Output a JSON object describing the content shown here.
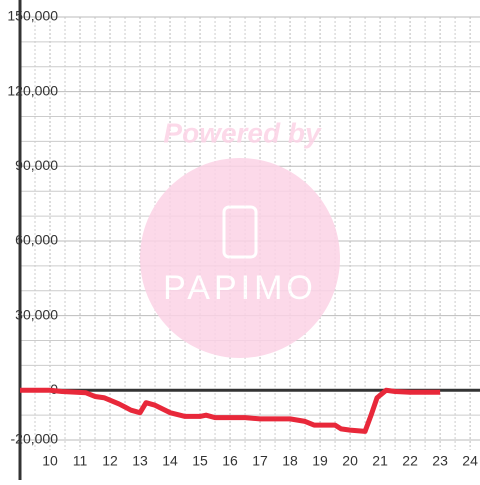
{
  "chart_data": {
    "type": "line",
    "watermark": {
      "text": "Powered by",
      "logo": "PAPIMO"
    },
    "x": [
      9,
      10,
      10.4,
      11.2,
      11.5,
      11.8,
      12.3,
      12.7,
      13.0,
      13.2,
      13.5,
      14.0,
      14.5,
      15.0,
      15.2,
      15.5,
      16.0,
      16.5,
      17.0,
      17.5,
      18.0,
      18.5,
      18.8,
      19.0,
      19.5,
      19.7,
      20.0,
      20.5,
      20.7,
      20.9,
      21.2,
      21.5,
      22.0,
      23.0
    ],
    "series": [
      {
        "color": "#e8283a",
        "values": [
          0,
          0,
          -500,
          -1000,
          -2500,
          -3000,
          -5500,
          -8000,
          -9000,
          -5000,
          -6000,
          -9000,
          -10500,
          -10500,
          -10000,
          -11000,
          -11000,
          -11000,
          -11500,
          -11500,
          -11500,
          -12500,
          -14000,
          -14000,
          -14000,
          -15500,
          -16000,
          -16500,
          -10000,
          -3000,
          0,
          -500,
          -800,
          -800
        ]
      }
    ],
    "xlim": [
      9,
      24.33
    ],
    "ylim": [
      -24000,
      150000
    ],
    "xticks": [
      10,
      11,
      12,
      13,
      14,
      15,
      16,
      17,
      18,
      19,
      20,
      21,
      22,
      23,
      24
    ],
    "yticks": [
      {
        "value": -20000,
        "label": "-20,000"
      },
      0,
      {
        "value": 30000,
        "label": "30,000"
      },
      {
        "value": 60000,
        "label": "60,000"
      },
      {
        "value": 90000,
        "label": "90,000"
      },
      {
        "value": 120000,
        "label": "120,000"
      },
      {
        "value": 150000,
        "label": "150,000"
      }
    ],
    "yminor": [
      -10000,
      10000,
      20000,
      40000,
      50000,
      70000,
      80000,
      100000,
      110000,
      130000,
      140000
    ],
    "xminor": [
      9.5,
      10.5,
      11.5,
      12.5,
      13.5,
      14.5,
      15.5,
      16.5,
      17.5,
      18.5,
      19.5,
      20.5,
      21.5,
      22.5,
      23.5
    ],
    "grid": true
  }
}
